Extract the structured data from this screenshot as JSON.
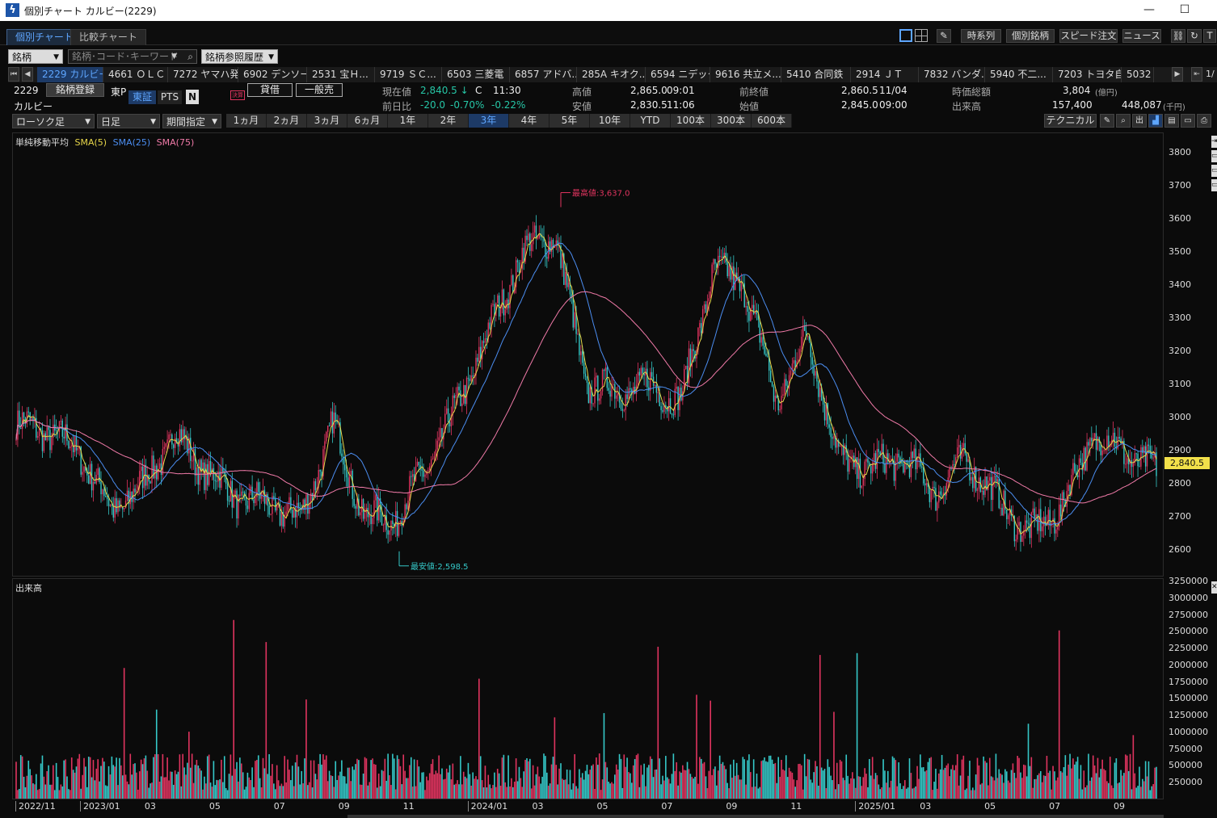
{
  "window": {
    "title": "個別チャート カルビー(2229)",
    "minimize": "—",
    "maximize": "☐"
  },
  "tabs": [
    {
      "label": "個別チャート"
    },
    {
      "label": "比較チャート"
    }
  ],
  "toolbar": {
    "timeseries": "時系列",
    "individual": "個別銘柄",
    "speed_order": "スピード注文",
    "news": "ニュース"
  },
  "search": {
    "type": "銘柄",
    "placeholder": "銘柄･コード･キーワード",
    "history": "銘柄参照履歴"
  },
  "stock_strip": [
    "2229 カルビー",
    "4661 ＯＬＣ",
    "7272 ヤマハ発",
    "6902 デンソー",
    "2531 宝Ｈ...",
    "9719 ＳＣ...",
    "6503 三菱電",
    "6857 アドバ...",
    "285A キオク...",
    "6594 ニデック",
    "9616 共立メ...",
    "5410 合同鉄",
    "2914 ＪＴ",
    "7832 バンダ...",
    "5940 不二...",
    "7203 トヨタ自",
    "5032 ｱ"
  ],
  "strip_page": "1/",
  "quote": {
    "code": "2229",
    "name": "カルビー",
    "market": "東P",
    "exchange": "東証",
    "pts": "PTS",
    "n_badge": "N",
    "kessan": "決算",
    "register": "銘柄登録",
    "lending": "貸借",
    "general_short": "一般売",
    "current_label": "現在値",
    "current_value": "2,840.5 ↓",
    "current_flag": "C",
    "current_time": "11:30",
    "change_label": "前日比",
    "change_value": "-20.0",
    "change_pct": "-0.70%",
    "change_pct2": "-0.22%",
    "high_label": "高値",
    "high_value": "2,865.0",
    "high_time": "09:01",
    "low_label": "安値",
    "low_value": "2,830.5",
    "low_time": "11:06",
    "prev_close_label": "前終値",
    "prev_close_value": "2,860.5",
    "prev_close_date": "11/04",
    "open_label": "始値",
    "open_value": "2,845.0",
    "open_time": "09:00",
    "mcap_label": "時価総額",
    "mcap_value": "3,804",
    "mcap_unit": "(億円)",
    "volume_label": "出来高",
    "volume_value": "157,400",
    "turnover_value": "448,087",
    "turnover_unit": "(千円)"
  },
  "controls": {
    "chart_type": "ローソク足",
    "interval": "日足",
    "period_mode": "期間指定",
    "periods": [
      "1ヵ月",
      "2ヵ月",
      "3ヵ月",
      "6ヵ月",
      "1年",
      "2年",
      "3年",
      "4年",
      "5年",
      "10年",
      "YTD",
      "100本",
      "300本",
      "600本"
    ],
    "active_period": "3年",
    "technical": "テクニカル",
    "out_btn": "出"
  },
  "legend": {
    "title": "単純移動平均",
    "sma5": "SMA(5)",
    "sma25": "SMA(25)",
    "sma75": "SMA(75)",
    "volume_title": "出来高"
  },
  "colors": {
    "up": "#e0345f",
    "down": "#35c8c8",
    "sma5": "#e7d64a",
    "sma25": "#4b8df0",
    "sma75": "#f07aa8",
    "high_marker": "#e0345f",
    "low_marker": "#35c8c8",
    "active_blue": "#5ea6ff"
  },
  "chart_data": {
    "type": "candlestick",
    "price_axis": {
      "ticks": [
        "3800",
        "3700",
        "3600",
        "3500",
        "3400",
        "3300",
        "3200",
        "3100",
        "3000",
        "2900",
        "2800",
        "2700",
        "2600"
      ],
      "ylim": [
        2520,
        3860
      ]
    },
    "volume_axis": {
      "ticks": [
        "3250000",
        "3000000",
        "2750000",
        "2500000",
        "2250000",
        "2000000",
        "1750000",
        "1500000",
        "1250000",
        "1000000",
        "750000",
        "500000",
        "250000"
      ],
      "ylim": [
        0,
        3300000
      ]
    },
    "x_labels": [
      "2022/11",
      "2023/01",
      "03",
      "05",
      "07",
      "09",
      "11",
      "2024/01",
      "03",
      "05",
      "07",
      "09",
      "11",
      "2025/01",
      "03",
      "05",
      "07",
      "09"
    ],
    "last_price": "2,840.5",
    "max_label": "最高値:3,637.0",
    "min_label": "最安値:2,598.5",
    "close_anchors": [
      {
        "date": "2022/11",
        "close": 2980
      },
      {
        "date": "2022/12",
        "close": 2960
      },
      {
        "date": "2023/01",
        "close": 2900
      },
      {
        "date": "2023/02",
        "close": 2720
      },
      {
        "date": "2023/03",
        "close": 2800
      },
      {
        "date": "2023/04",
        "close": 2950
      },
      {
        "date": "2023/05",
        "close": 2840
      },
      {
        "date": "2023/06",
        "close": 2760
      },
      {
        "date": "2023/07",
        "close": 2740
      },
      {
        "date": "2023/08",
        "close": 2700
      },
      {
        "date": "2023/09",
        "close": 2980
      },
      {
        "date": "2023/10",
        "close": 2700
      },
      {
        "date": "2023/11",
        "close": 2700
      },
      {
        "date": "2023/12",
        "close": 2860
      },
      {
        "date": "2024/01",
        "close": 3050
      },
      {
        "date": "2024/02",
        "close": 3280
      },
      {
        "date": "2024/03",
        "close": 3500
      },
      {
        "date": "2024/04",
        "close": 3560
      },
      {
        "date": "2024/05",
        "close": 3100
      },
      {
        "date": "2024/06",
        "close": 3080
      },
      {
        "date": "2024/07",
        "close": 3100
      },
      {
        "date": "2024/08",
        "close": 3050
      },
      {
        "date": "2024/09",
        "close": 3450
      },
      {
        "date": "2024/10",
        "close": 3400
      },
      {
        "date": "2024/11",
        "close": 3050
      },
      {
        "date": "2024/12",
        "close": 3250
      },
      {
        "date": "2025/01",
        "close": 2870
      },
      {
        "date": "2025/02",
        "close": 2850
      },
      {
        "date": "2025/03",
        "close": 2880
      },
      {
        "date": "2025/04",
        "close": 2780
      },
      {
        "date": "2025/05",
        "close": 2880
      },
      {
        "date": "2025/06",
        "close": 2750
      },
      {
        "date": "2025/07",
        "close": 2650
      },
      {
        "date": "2025/08",
        "close": 2730
      },
      {
        "date": "2025/09",
        "close": 2950
      },
      {
        "date": "2025/10",
        "close": 2900
      },
      {
        "date": "2025/11",
        "close": 2840
      }
    ],
    "series": [
      {
        "name": "SMA(5)"
      },
      {
        "name": "SMA(25)"
      },
      {
        "name": "SMA(75)"
      }
    ],
    "grid": false
  }
}
